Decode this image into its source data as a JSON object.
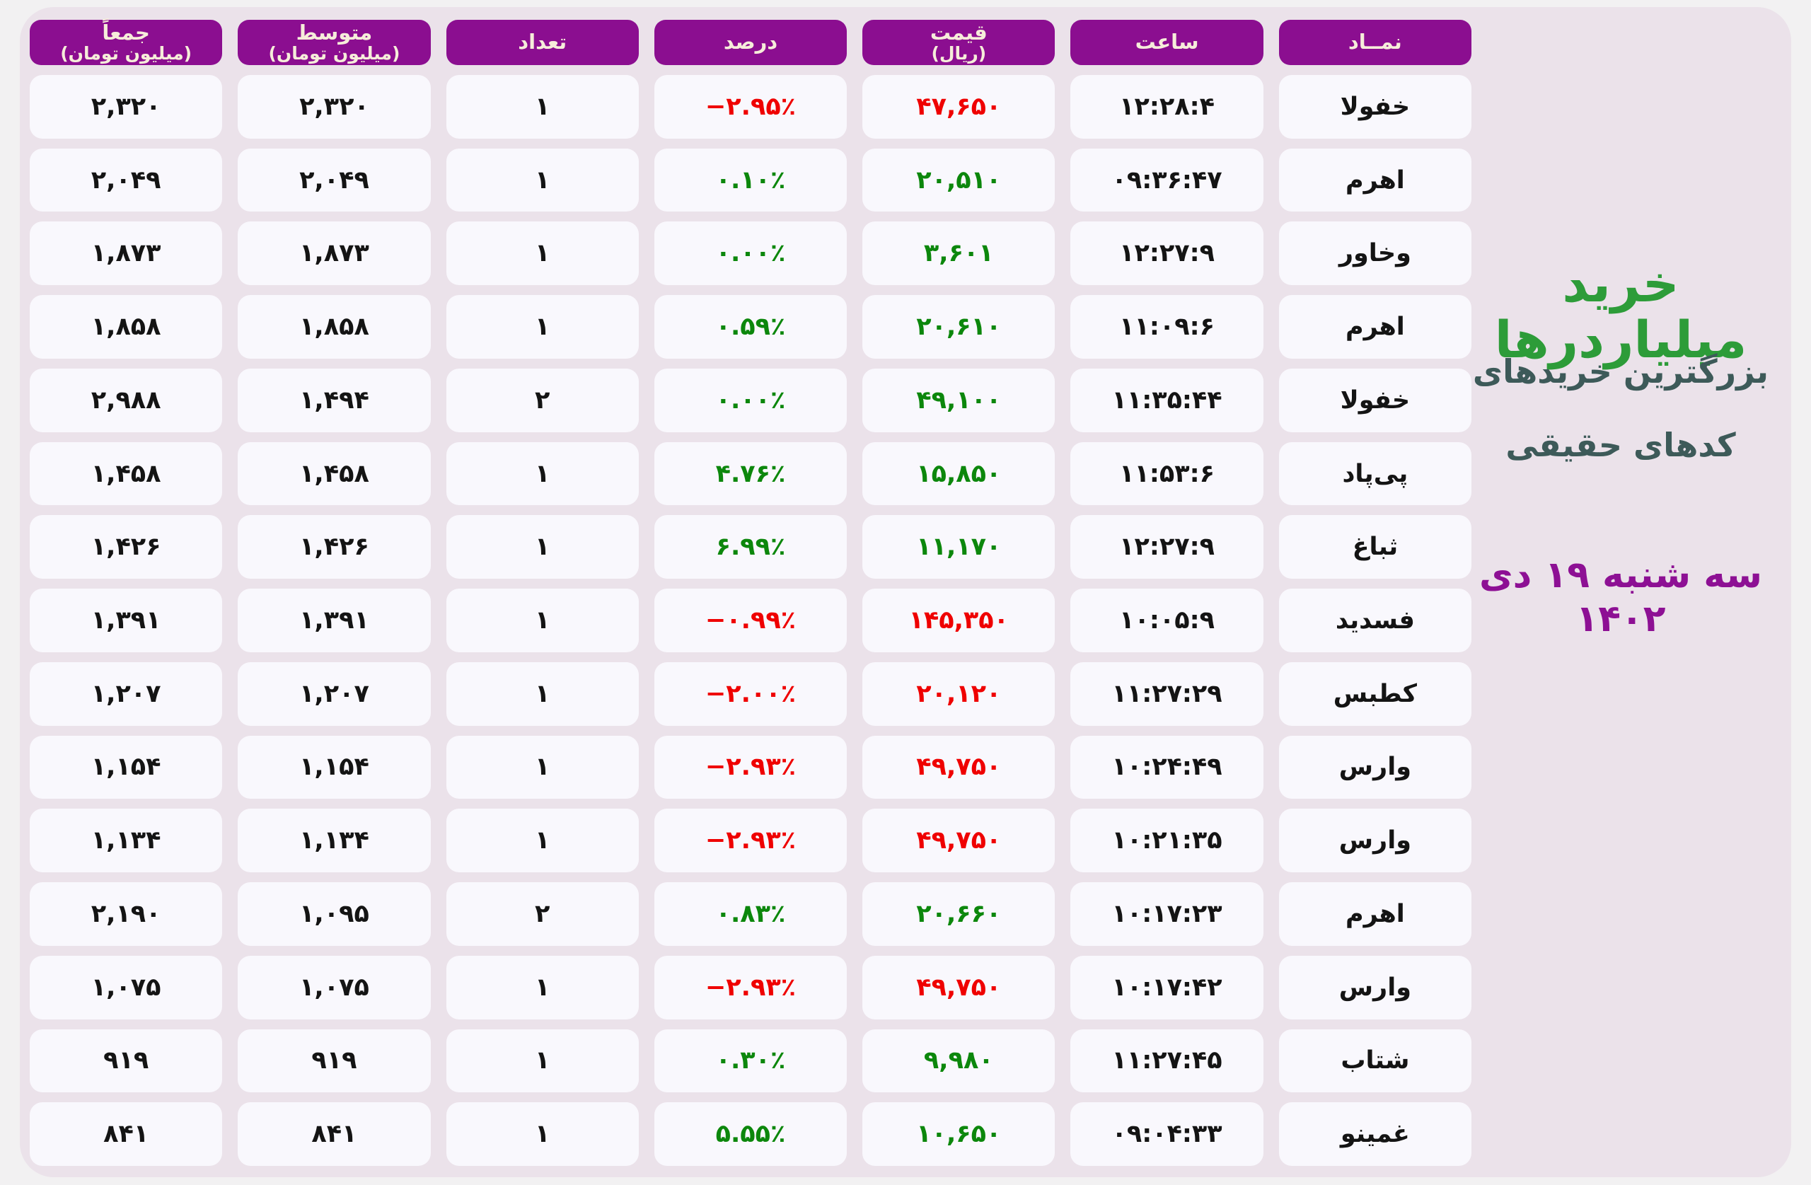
{
  "palette": {
    "page_bg": "#f2f1f2",
    "panel_bg": "#ebe2ea",
    "cell_bg": "#f9f8fd",
    "header_bg": "#8b0e90",
    "header_fg": "#f6edda",
    "negative_red": "#ef0000",
    "positive_green": "#0c870c",
    "text_dark": "#141414",
    "title_green": "#2d9c39",
    "subtitle_slate": "#3d5a59",
    "date_purple": "#8d1094"
  },
  "sidebar": {
    "title": "خرید میلیاردرها",
    "subtitle_line1": "بزرگترین خریدهای",
    "subtitle_line2": "کدهای حقیقی",
    "date": "سه شنبه ۱۹ دی ۱۴۰۲"
  },
  "table": {
    "columns": [
      {
        "key": "symbol",
        "label": "نمــاد",
        "sublabel": "",
        "numeric": false
      },
      {
        "key": "time",
        "label": "ساعت",
        "sublabel": "",
        "numeric": true
      },
      {
        "key": "price",
        "label": "قیمت",
        "sublabel": "(ریال)",
        "numeric": true
      },
      {
        "key": "percent",
        "label": "درصد",
        "sublabel": "",
        "numeric": true
      },
      {
        "key": "count",
        "label": "تعداد",
        "sublabel": "",
        "numeric": true
      },
      {
        "key": "average",
        "label": "متوسط",
        "sublabel": "(میلیون تومان)",
        "numeric": true
      },
      {
        "key": "total",
        "label": "جمعاً",
        "sublabel": "(میلیون تومان)",
        "numeric": true
      }
    ],
    "rows": [
      {
        "symbol": "خفولا",
        "time": "۱۲:۲۸:۴",
        "price": "۴۷,۶۵۰",
        "price_color": "red",
        "percent": "−۲.۹۵٪",
        "percent_color": "red",
        "count": "۱",
        "average": "۲,۳۲۰",
        "total": "۲,۳۲۰"
      },
      {
        "symbol": "اهرم",
        "time": "۰۹:۳۶:۴۷",
        "price": "۲۰,۵۱۰",
        "price_color": "green",
        "percent": "۰.۱۰٪",
        "percent_color": "green",
        "count": "۱",
        "average": "۲,۰۴۹",
        "total": "۲,۰۴۹"
      },
      {
        "symbol": "وخاور",
        "time": "۱۲:۲۷:۹",
        "price": "۳,۶۰۱",
        "price_color": "green",
        "percent": "۰.۰۰٪",
        "percent_color": "green",
        "count": "۱",
        "average": "۱,۸۷۳",
        "total": "۱,۸۷۳"
      },
      {
        "symbol": "اهرم",
        "time": "۱۱:۰۹:۶",
        "price": "۲۰,۶۱۰",
        "price_color": "green",
        "percent": "۰.۵۹٪",
        "percent_color": "green",
        "count": "۱",
        "average": "۱,۸۵۸",
        "total": "۱,۸۵۸"
      },
      {
        "symbol": "خفولا",
        "time": "۱۱:۳۵:۴۴",
        "price": "۴۹,۱۰۰",
        "price_color": "green",
        "percent": "۰.۰۰٪",
        "percent_color": "green",
        "count": "۲",
        "average": "۱,۴۹۴",
        "total": "۲,۹۸۸"
      },
      {
        "symbol": "پی‌پاد",
        "time": "۱۱:۵۳:۶",
        "price": "۱۵,۸۵۰",
        "price_color": "green",
        "percent": "۴.۷۶٪",
        "percent_color": "green",
        "count": "۱",
        "average": "۱,۴۵۸",
        "total": "۱,۴۵۸"
      },
      {
        "symbol": "ثباغ",
        "time": "۱۲:۲۷:۹",
        "price": "۱۱,۱۷۰",
        "price_color": "green",
        "percent": "۶.۹۹٪",
        "percent_color": "green",
        "count": "۱",
        "average": "۱,۴۲۶",
        "total": "۱,۴۲۶"
      },
      {
        "symbol": "فسدید",
        "time": "۱۰:۰۵:۹",
        "price": "۱۴۵,۳۵۰",
        "price_color": "red",
        "percent": "−۰.۹۹٪",
        "percent_color": "red",
        "count": "۱",
        "average": "۱,۳۹۱",
        "total": "۱,۳۹۱"
      },
      {
        "symbol": "کطبس",
        "time": "۱۱:۲۷:۲۹",
        "price": "۲۰,۱۲۰",
        "price_color": "red",
        "percent": "−۲.۰۰٪",
        "percent_color": "red",
        "count": "۱",
        "average": "۱,۲۰۷",
        "total": "۱,۲۰۷"
      },
      {
        "symbol": "وارس",
        "time": "۱۰:۲۴:۴۹",
        "price": "۴۹,۷۵۰",
        "price_color": "red",
        "percent": "−۲.۹۳٪",
        "percent_color": "red",
        "count": "۱",
        "average": "۱,۱۵۴",
        "total": "۱,۱۵۴"
      },
      {
        "symbol": "وارس",
        "time": "۱۰:۲۱:۳۵",
        "price": "۴۹,۷۵۰",
        "price_color": "red",
        "percent": "−۲.۹۳٪",
        "percent_color": "red",
        "count": "۱",
        "average": "۱,۱۳۴",
        "total": "۱,۱۳۴"
      },
      {
        "symbol": "اهرم",
        "time": "۱۰:۱۷:۲۳",
        "price": "۲۰,۶۶۰",
        "price_color": "green",
        "percent": "۰.۸۳٪",
        "percent_color": "green",
        "count": "۲",
        "average": "۱,۰۹۵",
        "total": "۲,۱۹۰"
      },
      {
        "symbol": "وارس",
        "time": "۱۰:۱۷:۴۲",
        "price": "۴۹,۷۵۰",
        "price_color": "red",
        "percent": "−۲.۹۳٪",
        "percent_color": "red",
        "count": "۱",
        "average": "۱,۰۷۵",
        "total": "۱,۰۷۵"
      },
      {
        "symbol": "شتاب",
        "time": "۱۱:۲۷:۴۵",
        "price": "۹,۹۸۰",
        "price_color": "green",
        "percent": "۰.۳۰٪",
        "percent_color": "green",
        "count": "۱",
        "average": "۹۱۹",
        "total": "۹۱۹"
      },
      {
        "symbol": "غمینو",
        "time": "۰۹:۰۴:۳۳",
        "price": "۱۰,۶۵۰",
        "price_color": "green",
        "percent": "۵.۵۵٪",
        "percent_color": "green",
        "count": "۱",
        "average": "۸۴۱",
        "total": "۸۴۱"
      }
    ]
  },
  "chart_data": {
    "type": "table",
    "title": "خرید میلیاردرها",
    "subtitle": "بزرگترین خریدهای کدهای حقیقی",
    "date": "سه شنبه ۱۹ دی ۱۴۰۲",
    "columns": [
      "نمــاد",
      "ساعت",
      "قیمت (ریال)",
      "درصد",
      "تعداد",
      "متوسط (میلیون تومان)",
      "جمعاً (میلیون تومان)"
    ],
    "rows": [
      [
        "خفولا",
        "12:28:4",
        47650,
        -2.95,
        1,
        2320,
        2320
      ],
      [
        "اهرم",
        "09:36:47",
        20510,
        0.1,
        1,
        2049,
        2049
      ],
      [
        "وخاور",
        "12:27:9",
        3601,
        0.0,
        1,
        1873,
        1873
      ],
      [
        "اهرم",
        "11:09:6",
        20610,
        0.59,
        1,
        1858,
        1858
      ],
      [
        "خفولا",
        "11:35:44",
        49100,
        0.0,
        2,
        1494,
        2988
      ],
      [
        "پی‌پاد",
        "11:53:6",
        15850,
        4.76,
        1,
        1458,
        1458
      ],
      [
        "ثباغ",
        "12:27:9",
        11170,
        6.99,
        1,
        1426,
        1426
      ],
      [
        "فسدید",
        "10:05:9",
        145350,
        -0.99,
        1,
        1391,
        1391
      ],
      [
        "کطبس",
        "11:27:29",
        20120,
        -2.0,
        1,
        1207,
        1207
      ],
      [
        "وارس",
        "10:24:49",
        49750,
        -2.93,
        1,
        1154,
        1154
      ],
      [
        "وارس",
        "10:21:35",
        49750,
        -2.93,
        1,
        1134,
        1134
      ],
      [
        "اهرم",
        "10:17:23",
        20660,
        0.83,
        2,
        1095,
        2190
      ],
      [
        "وارس",
        "10:17:42",
        49750,
        -2.93,
        1,
        1075,
        1075
      ],
      [
        "شتاب",
        "11:27:45",
        9980,
        0.3,
        1,
        919,
        919
      ],
      [
        "غمینو",
        "09:04:33",
        10650,
        5.55,
        1,
        841,
        841
      ]
    ]
  }
}
